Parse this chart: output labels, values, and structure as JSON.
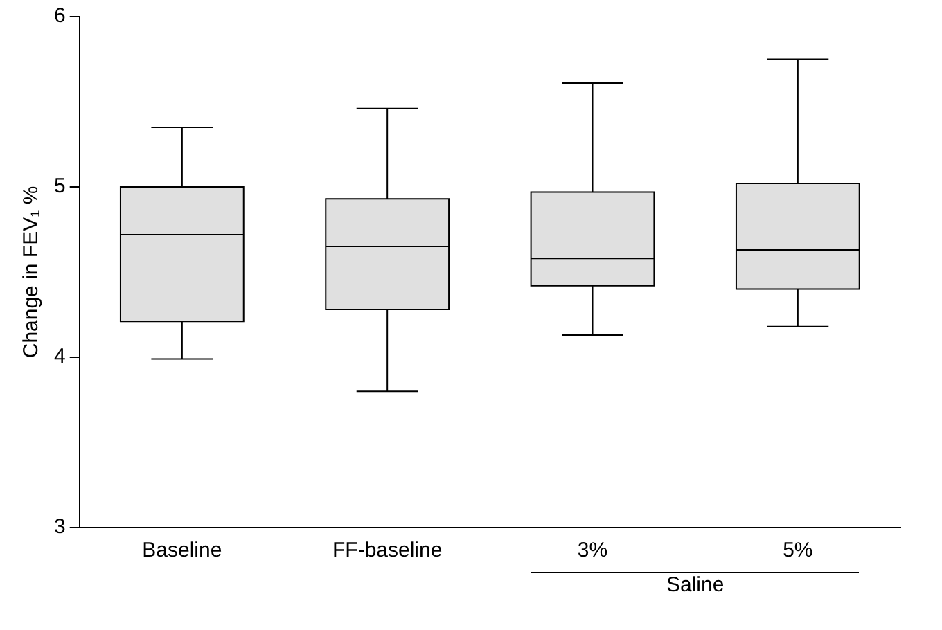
{
  "chart_data": {
    "type": "box",
    "ylabel": "Change in FEV₁ %",
    "categories": [
      "Baseline",
      "FF-baseline",
      "3%",
      "5%"
    ],
    "boxes": [
      {
        "low": 3.99,
        "q1": 4.21,
        "median": 4.72,
        "q3": 5.0,
        "high": 5.35
      },
      {
        "low": 3.8,
        "q1": 4.28,
        "median": 4.65,
        "q3": 4.93,
        "high": 5.46
      },
      {
        "low": 4.13,
        "q1": 4.42,
        "median": 4.58,
        "q3": 4.97,
        "high": 5.61
      },
      {
        "low": 4.18,
        "q1": 4.4,
        "median": 4.63,
        "q3": 5.02,
        "high": 5.75
      }
    ],
    "color": "#e0e0e0",
    "ylim": [
      3,
      6
    ],
    "yticks": [
      3,
      4,
      5,
      6
    ],
    "grid": false,
    "legend": false,
    "annotations": [
      "Saline"
    ]
  }
}
